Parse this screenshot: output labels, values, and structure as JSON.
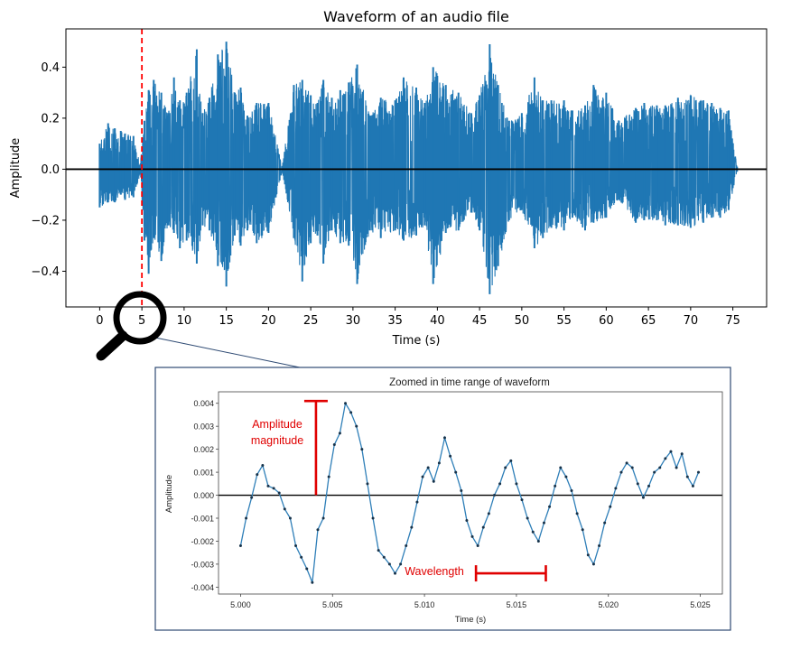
{
  "chart_data": [
    {
      "type": "line",
      "title": "Waveform of an audio file",
      "xlabel": "Time (s)",
      "ylabel": "Amplitude",
      "xlim": [
        -4,
        79
      ],
      "ylim": [
        -0.54,
        0.55
      ],
      "xticks": [
        0,
        5,
        10,
        15,
        20,
        25,
        30,
        35,
        40,
        45,
        50,
        55,
        60,
        65,
        70,
        75
      ],
      "yticks": [
        -0.4,
        -0.2,
        0.0,
        0.2,
        0.4
      ],
      "ytick_labels": [
        "−0.4",
        "−0.2",
        "0.0",
        "0.2",
        "0.4"
      ],
      "grid": false,
      "line_color": "#1f77b4",
      "zero_line_color": "#000000",
      "marker_x": 5,
      "marker_color": "#ff0000",
      "series": [
        {
          "x": [
            0.0,
            1.0,
            1.8,
            2.5,
            3.0,
            4.0,
            4.8,
            5.3,
            5.8,
            6.4,
            7.3,
            8.1,
            8.8,
            9.5,
            10.3,
            11.5,
            12.2,
            13.0,
            14.0,
            15.0,
            16.0,
            16.7,
            17.5,
            18.6,
            20.0,
            21.6,
            23.0,
            24.0,
            25.0,
            25.8,
            26.5,
            27.5,
            28.5,
            29.5,
            30.5,
            32.0,
            33.3,
            35.0,
            36.0,
            37.5,
            38.5,
            39.5,
            41.0,
            42.5,
            44.0,
            45.0,
            46.2,
            47.2,
            48.5,
            50.0,
            51.5,
            52.5,
            53.5,
            55.0,
            56.0,
            57.5,
            58.5,
            60.0,
            61.5,
            63.5,
            64.5,
            66.0,
            67.0,
            68.5,
            70.0,
            71.5,
            72.5,
            73.5,
            74.5,
            75.5
          ],
          "upper": [
            0.1,
            0.18,
            0.16,
            0.15,
            0.14,
            0.13,
            0.02,
            0.19,
            0.31,
            0.35,
            0.3,
            0.22,
            0.36,
            0.27,
            0.3,
            0.47,
            0.22,
            0.28,
            0.45,
            0.5,
            0.3,
            0.32,
            0.21,
            0.26,
            0.26,
            0.01,
            0.33,
            0.35,
            0.29,
            0.26,
            0.35,
            0.28,
            0.31,
            0.34,
            0.41,
            0.21,
            0.28,
            0.27,
            0.36,
            0.32,
            0.26,
            0.4,
            0.33,
            0.3,
            0.22,
            0.29,
            0.49,
            0.33,
            0.19,
            0.22,
            0.36,
            0.27,
            0.27,
            0.27,
            0.23,
            0.25,
            0.33,
            0.3,
            0.19,
            0.24,
            0.26,
            0.25,
            0.25,
            0.28,
            0.29,
            0.27,
            0.26,
            0.24,
            0.23,
            0.01
          ],
          "lower": [
            -0.15,
            -0.13,
            -0.13,
            -0.1,
            -0.12,
            -0.11,
            -0.02,
            -0.28,
            -0.41,
            -0.27,
            -0.36,
            -0.22,
            -0.25,
            -0.31,
            -0.28,
            -0.37,
            -0.22,
            -0.24,
            -0.38,
            -0.46,
            -0.26,
            -0.3,
            -0.24,
            -0.29,
            -0.25,
            -0.01,
            -0.27,
            -0.44,
            -0.29,
            -0.26,
            -0.37,
            -0.24,
            -0.29,
            -0.3,
            -0.45,
            -0.24,
            -0.27,
            -0.24,
            -0.28,
            -0.26,
            -0.22,
            -0.45,
            -0.25,
            -0.24,
            -0.17,
            -0.24,
            -0.49,
            -0.38,
            -0.2,
            -0.16,
            -0.31,
            -0.27,
            -0.23,
            -0.24,
            -0.19,
            -0.24,
            -0.21,
            -0.19,
            -0.12,
            -0.21,
            -0.2,
            -0.2,
            -0.22,
            -0.22,
            -0.23,
            -0.21,
            -0.19,
            -0.19,
            -0.16,
            -0.01
          ]
        }
      ]
    },
    {
      "type": "scatter",
      "title": "Zoomed in time range of waveform",
      "xlabel": "Time (s)",
      "ylabel": "Amplitude",
      "xlim": [
        4.9988,
        5.0262
      ],
      "ylim": [
        -0.0043,
        0.0045
      ],
      "xticks": [
        5.0,
        5.005,
        5.01,
        5.015,
        5.02,
        5.025
      ],
      "xtick_labels": [
        "5.000",
        "5.005",
        "5.010",
        "5.015",
        "5.020",
        "5.025"
      ],
      "yticks": [
        -0.004,
        -0.003,
        -0.002,
        -0.001,
        0.0,
        0.001,
        0.002,
        0.003,
        0.004
      ],
      "ytick_labels": [
        "-0.004",
        "-0.003",
        "-0.002",
        "-0.001",
        "0.000",
        "0.001",
        "0.002",
        "0.003",
        "0.004"
      ],
      "grid": false,
      "line_color": "#2f7fb8",
      "point_color": "#16324a",
      "series": [
        {
          "x": [
            5.0,
            5.0003,
            5.0006,
            5.0009,
            5.0012,
            5.0015,
            5.0018,
            5.0021,
            5.0024,
            5.0027,
            5.003,
            5.0033,
            5.0036,
            5.0039,
            5.0042,
            5.0045,
            5.0048,
            5.0051,
            5.0054,
            5.0057,
            5.006,
            5.0063,
            5.0066,
            5.0069,
            5.0072,
            5.0075,
            5.0078,
            5.0081,
            5.0084,
            5.0087,
            5.009,
            5.0093,
            5.0096,
            5.0099,
            5.0102,
            5.0105,
            5.0108,
            5.0111,
            5.0114,
            5.0117,
            5.012,
            5.0123,
            5.0126,
            5.0129,
            5.0132,
            5.0135,
            5.0138,
            5.0141,
            5.0144,
            5.0147,
            5.015,
            5.0153,
            5.0156,
            5.0159,
            5.0162,
            5.0165,
            5.0168,
            5.0171,
            5.0174,
            5.0177,
            5.018,
            5.0183,
            5.0186,
            5.0189,
            5.0192,
            5.0195,
            5.0198,
            5.0201,
            5.0204,
            5.0207,
            5.021,
            5.0213,
            5.0216,
            5.0219,
            5.0222,
            5.0225,
            5.0228,
            5.0231,
            5.0234,
            5.0237,
            5.024,
            5.0243,
            5.0246,
            5.0249
          ],
          "y": [
            -0.0022,
            -0.001,
            -0.0001,
            0.0009,
            0.0013,
            0.0004,
            0.0003,
            0.0001,
            -0.0006,
            -0.001,
            -0.0022,
            -0.0027,
            -0.0032,
            -0.0038,
            -0.0015,
            -0.001,
            0.0008,
            0.0022,
            0.0027,
            0.004,
            0.0036,
            0.003,
            0.002,
            0.0005,
            -0.001,
            -0.0024,
            -0.0027,
            -0.003,
            -0.0034,
            -0.003,
            -0.0022,
            -0.0014,
            -0.0003,
            0.0008,
            0.0012,
            0.0006,
            0.0014,
            0.0025,
            0.0017,
            0.001,
            0.0002,
            -0.0011,
            -0.0018,
            -0.0022,
            -0.0014,
            -0.0008,
            0.0,
            0.0005,
            0.0012,
            0.0015,
            0.0005,
            -0.0002,
            -0.001,
            -0.0016,
            -0.002,
            -0.0012,
            -0.0005,
            0.0004,
            0.0012,
            0.0008,
            0.0002,
            -0.0008,
            -0.0015,
            -0.0026,
            -0.003,
            -0.0022,
            -0.0012,
            -0.0005,
            0.0003,
            0.001,
            0.0014,
            0.0012,
            0.0005,
            -0.0001,
            0.0004,
            0.001,
            0.0012,
            0.0016,
            0.0019,
            0.0012,
            0.0018,
            0.0008,
            0.0004,
            0.001
          ]
        }
      ],
      "annotations": [
        {
          "text_lines": [
            "Amplitude",
            "magnitude"
          ],
          "kind": "amplitude-bar",
          "x": 5.0041,
          "y_from": 0.0,
          "y_to": 0.0041,
          "color": "#e00000"
        },
        {
          "text_lines": [
            "Wavelength"
          ],
          "kind": "wavelength-bar",
          "x_from": 5.0128,
          "x_to": 5.0166,
          "y": -0.0034,
          "color": "#e00000"
        }
      ]
    }
  ]
}
